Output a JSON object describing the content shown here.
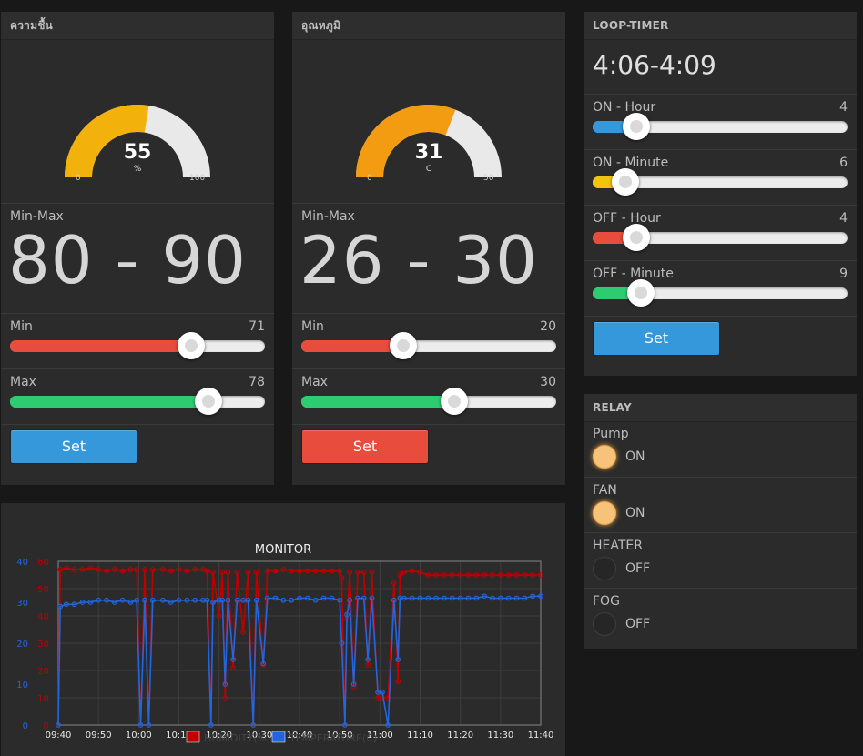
{
  "colors": {
    "humidity_gauge": "#f3b10b",
    "temperature_gauge": "#f39c12",
    "gauge_bg": "#e9e9e9",
    "red": "#e74c3c",
    "green": "#2ecc71",
    "blue": "#3498db",
    "yellow": "#f1c40f",
    "humidity_series": "#c00000",
    "temperature_series": "#2266dd"
  },
  "humidity_panel": {
    "title": "ความชื้น",
    "gauge": {
      "value": "55",
      "unit": "%",
      "min": "0",
      "max": "100",
      "fraction": 0.55
    },
    "range_label": "Min-Max",
    "range_value": "80 - 90",
    "min_slider": {
      "label": "Min",
      "value": "71",
      "fraction": 0.71
    },
    "max_slider": {
      "label": "Max",
      "value": "78",
      "fraction": 0.78
    },
    "button": "Set"
  },
  "temperature_panel": {
    "title": "อุณหภูมิ",
    "gauge": {
      "value": "31",
      "unit": "C",
      "min": "0",
      "max": "50",
      "fraction": 0.62
    },
    "range_label": "Min-Max",
    "range_value": "26 - 30",
    "min_slider": {
      "label": "Min",
      "value": "20",
      "fraction": 0.4
    },
    "max_slider": {
      "label": "Max",
      "value": "30",
      "fraction": 0.6
    },
    "button": "Set"
  },
  "loop_timer": {
    "title": "LOOP-TIMER",
    "value": "4:06-4:09",
    "sliders": [
      {
        "label": "ON - Hour",
        "value": "4",
        "fraction": 0.17
      },
      {
        "label": "ON - Minute",
        "value": "6",
        "fraction": 0.13
      },
      {
        "label": "OFF - Hour",
        "value": "4",
        "fraction": 0.17
      },
      {
        "label": "OFF - Minute",
        "value": "9",
        "fraction": 0.19
      }
    ],
    "button": "Set"
  },
  "relay": {
    "title": "RELAY",
    "items": [
      {
        "label": "Pump",
        "state": "ON"
      },
      {
        "label": "FAN",
        "state": "ON"
      },
      {
        "label": "HEATER",
        "state": "OFF"
      },
      {
        "label": "FOG",
        "state": "OFF"
      }
    ]
  },
  "chart_data": {
    "type": "line",
    "title": "MONITOR",
    "x_tick_labels": [
      "09:40",
      "09:50",
      "10:00",
      "10:10",
      "10:20",
      "10:30",
      "10:40",
      "10:50",
      "11:00",
      "11:10",
      "11:20",
      "11:30",
      "11:40"
    ],
    "y_left_ticks": [
      "0",
      "10",
      "20",
      "30",
      "40",
      "50",
      "60"
    ],
    "y_right_ticks": [
      "0",
      "10",
      "20",
      "30",
      "40"
    ],
    "ylim_humidity": [
      0,
      60
    ],
    "ylim_temperature": [
      0,
      40
    ],
    "xlim_minutes": [
      0,
      120
    ],
    "legend_position": "bottom",
    "series": [
      {
        "name": "HUMIDITY(%)",
        "axis": "left",
        "points": [
          [
            0,
            0
          ],
          [
            0.5,
            57
          ],
          [
            2,
            57.5
          ],
          [
            4,
            57
          ],
          [
            6,
            57
          ],
          [
            8,
            57.5
          ],
          [
            10,
            57
          ],
          [
            12,
            56.5
          ],
          [
            14,
            57
          ],
          [
            16,
            56.5
          ],
          [
            18,
            57
          ],
          [
            19.5,
            57
          ],
          [
            20.5,
            0
          ],
          [
            21.5,
            57
          ],
          [
            22.5,
            0
          ],
          [
            23.5,
            57
          ],
          [
            26,
            57
          ],
          [
            28,
            56.5
          ],
          [
            30,
            57
          ],
          [
            32,
            56.5
          ],
          [
            34,
            57
          ],
          [
            36,
            57
          ],
          [
            37,
            56.5
          ],
          [
            38,
            0
          ],
          [
            38.5,
            56
          ],
          [
            40,
            40
          ],
          [
            40.8,
            56
          ],
          [
            41.5,
            10
          ],
          [
            42.2,
            56
          ],
          [
            43.5,
            21
          ],
          [
            44.5,
            56
          ],
          [
            46,
            34
          ],
          [
            47.2,
            56
          ],
          [
            48.5,
            0
          ],
          [
            49.3,
            56
          ],
          [
            51,
            22
          ],
          [
            52,
            56.5
          ],
          [
            54,
            56.5
          ],
          [
            56,
            57
          ],
          [
            58,
            56.5
          ],
          [
            60,
            56.5
          ],
          [
            62,
            56.5
          ],
          [
            64,
            56.5
          ],
          [
            66,
            56.5
          ],
          [
            68,
            56.5
          ],
          [
            70,
            56.5
          ],
          [
            70.5,
            54
          ],
          [
            71.3,
            0
          ],
          [
            71.8,
            39
          ],
          [
            72.5,
            56
          ],
          [
            73.5,
            14
          ],
          [
            74.5,
            56
          ],
          [
            76,
            56
          ],
          [
            77,
            22
          ],
          [
            78,
            56
          ],
          [
            79.5,
            10
          ],
          [
            80.6,
            10
          ],
          [
            82,
            10
          ],
          [
            83.5,
            52
          ],
          [
            84.5,
            16
          ],
          [
            85,
            55
          ],
          [
            86,
            56
          ],
          [
            88,
            56.5
          ],
          [
            90,
            56
          ],
          [
            92,
            55
          ],
          [
            94,
            55
          ],
          [
            96,
            55
          ],
          [
            98,
            55
          ],
          [
            100,
            55
          ],
          [
            102,
            55
          ],
          [
            104,
            55
          ],
          [
            106,
            55
          ],
          [
            108,
            55
          ],
          [
            110,
            55
          ],
          [
            112,
            55
          ],
          [
            114,
            55
          ],
          [
            116,
            55
          ],
          [
            118,
            55
          ],
          [
            120,
            55
          ]
        ]
      },
      {
        "name": "TEMPERATURE(C)",
        "axis": "right",
        "points": [
          [
            0,
            0
          ],
          [
            0.5,
            29
          ],
          [
            2,
            29.5
          ],
          [
            4,
            29.5
          ],
          [
            6,
            30
          ],
          [
            8,
            30
          ],
          [
            10,
            30.5
          ],
          [
            12,
            30.5
          ],
          [
            14,
            30
          ],
          [
            16,
            30.5
          ],
          [
            18,
            30
          ],
          [
            19.5,
            30.5
          ],
          [
            20.5,
            0
          ],
          [
            21.5,
            30.5
          ],
          [
            22.5,
            0
          ],
          [
            23.5,
            30.5
          ],
          [
            26,
            30.5
          ],
          [
            28,
            30
          ],
          [
            30,
            30.5
          ],
          [
            32,
            30.5
          ],
          [
            34,
            30.5
          ],
          [
            36,
            30.5
          ],
          [
            37,
            30.5
          ],
          [
            38,
            0
          ],
          [
            38.5,
            30
          ],
          [
            40,
            30.5
          ],
          [
            40.8,
            30.5
          ],
          [
            41.5,
            10
          ],
          [
            42.2,
            30.5
          ],
          [
            43.5,
            16
          ],
          [
            44.5,
            30.5
          ],
          [
            46,
            30.5
          ],
          [
            47.2,
            30.5
          ],
          [
            48.5,
            0
          ],
          [
            49.3,
            30.5
          ],
          [
            51,
            15
          ],
          [
            52,
            31
          ],
          [
            54,
            31
          ],
          [
            56,
            30.5
          ],
          [
            58,
            30.5
          ],
          [
            60,
            31
          ],
          [
            62,
            31
          ],
          [
            64,
            30.5
          ],
          [
            66,
            31
          ],
          [
            68,
            31
          ],
          [
            70,
            30.5
          ],
          [
            70.5,
            20
          ],
          [
            71.3,
            0
          ],
          [
            71.8,
            27
          ],
          [
            72.5,
            30.5
          ],
          [
            73.5,
            10
          ],
          [
            74.5,
            31
          ],
          [
            76,
            31
          ],
          [
            77,
            16
          ],
          [
            78,
            31
          ],
          [
            79.5,
            8
          ],
          [
            80.6,
            8
          ],
          [
            82,
            0
          ],
          [
            83.5,
            30.5
          ],
          [
            84.5,
            16
          ],
          [
            85,
            31
          ],
          [
            86,
            31
          ],
          [
            88,
            31
          ],
          [
            90,
            31
          ],
          [
            92,
            31
          ],
          [
            94,
            31
          ],
          [
            96,
            31
          ],
          [
            98,
            31
          ],
          [
            100,
            31
          ],
          [
            102,
            31
          ],
          [
            104,
            31
          ],
          [
            106,
            31.5
          ],
          [
            108,
            31
          ],
          [
            110,
            31
          ],
          [
            112,
            31
          ],
          [
            114,
            31
          ],
          [
            116,
            31
          ],
          [
            118,
            31.5
          ],
          [
            120,
            31.5
          ]
        ]
      }
    ]
  }
}
